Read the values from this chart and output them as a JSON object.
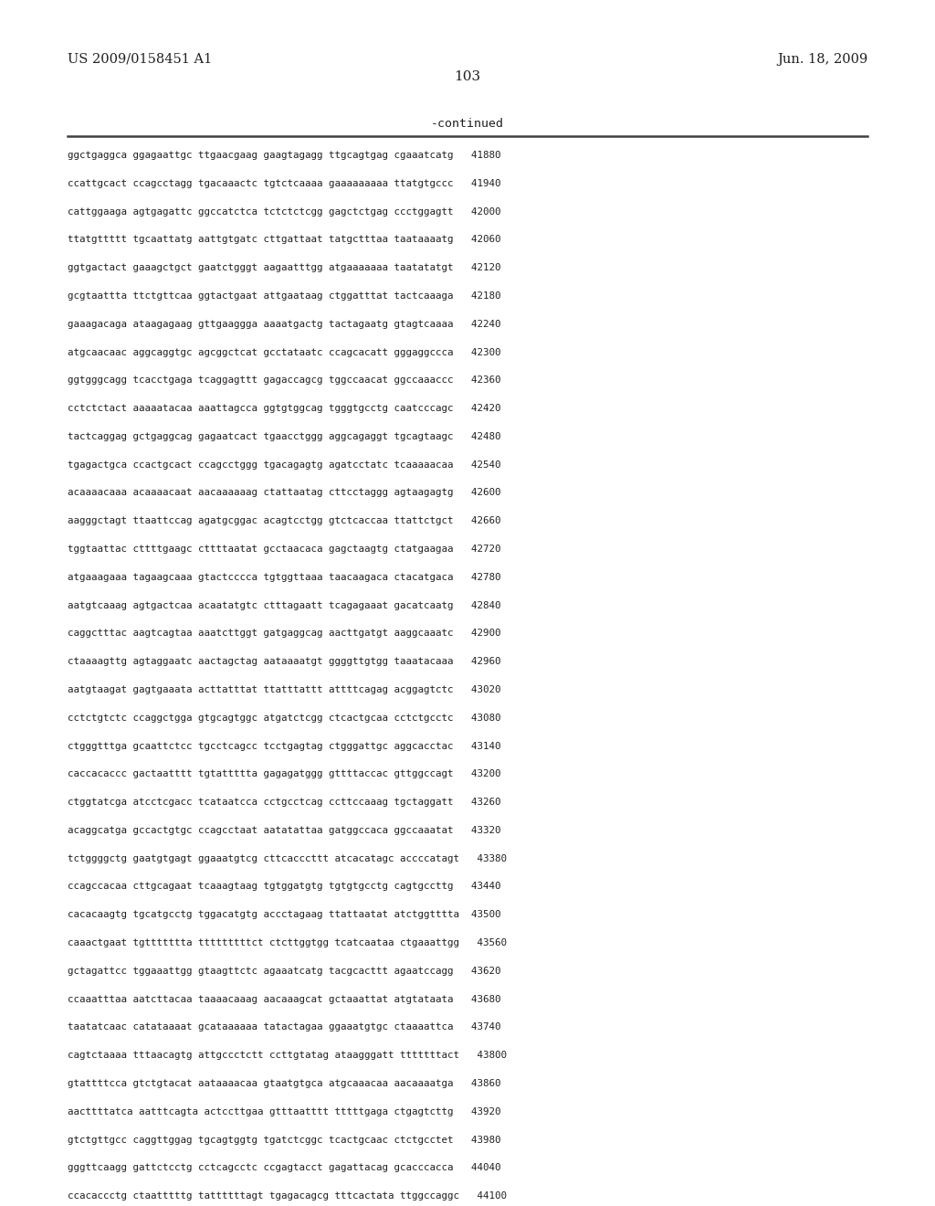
{
  "header_left": "US 2009/0158451 A1",
  "header_right": "Jun. 18, 2009",
  "page_number": "103",
  "continued_label": "-continued",
  "background_color": "#ffffff",
  "text_color": "#231f20",
  "font_size": 7.8,
  "header_font_size": 10.5,
  "page_num_font_size": 11,
  "continued_font_size": 9.5,
  "lines": [
    "ggctgaggca ggagaattgc ttgaacgaag gaagtagagg ttgcagtgag cgaaatcatg   41880",
    "ccattgcact ccagcctagg tgacaaactc tgtctcaaaa gaaaaaaaaa ttatgtgccc   41940",
    "cattggaaga agtgagattc ggccatctca tctctctcgg gagctctgag ccctggagtt   42000",
    "ttatgttttt tgcaattatg aattgtgatc cttgattaat tatgctttaa taataaaatg   42060",
    "ggtgactact gaaagctgct gaatctgggt aagaatttgg atgaaaaaaa taatatatgt   42120",
    "gcgtaattta ttctgttcaa ggtactgaat attgaataag ctggatttat tactcaaaga   42180",
    "gaaagacaga ataagagaag gttgaaggga aaaatgactg tactagaatg gtagtcaaaa   42240",
    "atgcaacaac aggcaggtgc agcggctcat gcctataatc ccagcacatt gggaggccca   42300",
    "ggtgggcagg tcacctgaga tcaggagttt gagaccagcg tggccaacat ggccaaaccc   42360",
    "cctctctact aaaaatacaa aaattagcca ggtgtggcag tgggtgcctg caatcccagc   42420",
    "tactcaggag gctgaggcag gagaatcact tgaacctggg aggcagaggt tgcagtaagc   42480",
    "tgagactgca ccactgcact ccagcctggg tgacagagtg agatcctatc tcaaaaacaa   42540",
    "acaaaacaaa acaaaacaat aacaaaaaag ctattaatag cttcctaggg agtaagagtg   42600",
    "aagggctagt ttaattccag agatgcggac acagtcctgg gtctcaccaa ttattctgct   42660",
    "tggtaattac cttttgaagc cttttaatat gcctaacaca gagctaagtg ctatgaagaa   42720",
    "atgaaagaaa tagaagcaaa gtactcccca tgtggttaaa taacaagaca ctacatgaca   42780",
    "aatgtcaaag agtgactcaa acaatatgtc ctttagaatt tcagagaaat gacatcaatg   42840",
    "caggctttac aagtcagtaa aaatcttggt gatgaggcag aacttgatgt aaggcaaatc   42900",
    "ctaaaagttg agtaggaatc aactagctag aataaaatgt ggggttgtgg taaatacaaa   42960",
    "aatgtaagat gagtgaaata acttatttat ttatttattt attttcagag acggagtctc   43020",
    "cctctgtctc ccaggctgga gtgcagtggc atgatctcgg ctcactgcaa cctctgcctc   43080",
    "ctgggtttga gcaattctcc tgcctcagcc tcctgagtag ctgggattgc aggcacctac   43140",
    "caccacaccc gactaatttt tgtattttta gagagatggg gttttaccac gttggccagt   43200",
    "ctggtatcga atcctcgacc tcataatcca cctgcctcag ccttccaaag tgctaggatt   43260",
    "acaggcatga gccactgtgc ccagcctaat aatatattaa gatggccaca ggccaaatat   43320",
    "tctggggctg gaatgtgagt ggaaatgtcg cttcacccttt atcacatagc accccatagt   43380",
    "ccagccacaa cttgcagaat tcaaagtaag tgtggatgtg tgtgtgcctg cagtgccttg   43440",
    "cacacaagtg tgcatgcctg tggacatgtg accctagaag ttattaatat atctggtttta  43500",
    "caaactgaat tgttttttta tttttttttct ctcttggtgg tcatcaataa ctgaaattgg   43560",
    "gctagattcc tggaaattgg gtaagttctc agaaatcatg tacgcacttt agaatccagg   43620",
    "ccaaatttaa aatcttacaa taaaacaaag aacaaagcat gctaaattat atgtataata   43680",
    "taatatcaac catataaaat gcataaaaaa tatactagaa ggaaatgtgc ctaaaattca   43740",
    "cagtctaaaa tttaacagtg attgccctctt ccttgtatag ataagggatt tttttttact   43800",
    "gtattttcca gtctgtacat aataaaacaa gtaatgtgca atgcaaacaa aacaaaatga   43860",
    "aacttttatca aatttcagta actccttgaa gtttaatttt tttttgaga ctgagtcttg   43920",
    "gtctgttgcc caggttggag tgcagtggtg tgatctcggc tcactgcaac ctctgcctet   43980",
    "gggttcaagg gattctcctg cctcagcctc ccgagtacct gagattacag gcacccacca   44040",
    "ccacaccctg ctaatttttg tattttttagt tgagacagcg tttcactata ttggccaggc   44100"
  ]
}
